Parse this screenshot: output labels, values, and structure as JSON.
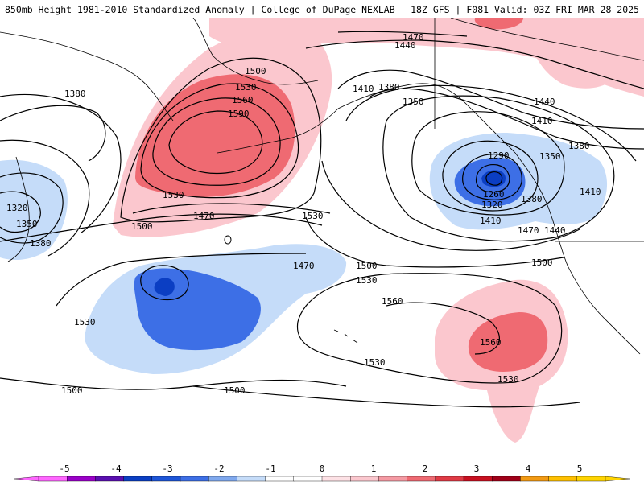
{
  "header": {
    "left_text": "850mb Height 1981-2010 Standardized Anomaly | College of DuPage NEXLAB",
    "right_text": "18Z GFS | F081 Valid: 03Z FRI MAR 28 2025"
  },
  "colors": {
    "anom_neg4": "#9a00c8",
    "anom_neg3": "#0b3ec3",
    "anom_neg2": "#3d6fe6",
    "anom_neg1": "#c5dcf9",
    "anom_pos1": "#fbc7ce",
    "anom_pos2": "#ef6a72",
    "anom_pos3": "#c81020",
    "anom_pos4": "#f29a13",
    "anom_pos5": "#ffd400",
    "contour": "#000000",
    "coast": "#000000"
  },
  "contour_labels": [
    {
      "text": "1470"
    },
    {
      "text": "1440"
    },
    {
      "text": "1380"
    },
    {
      "text": "1410"
    },
    {
      "text": "1350"
    },
    {
      "text": "1500"
    },
    {
      "text": "1530"
    },
    {
      "text": "1560"
    },
    {
      "text": "1590"
    },
    {
      "text": "1530"
    },
    {
      "text": "1500"
    },
    {
      "text": "1530"
    },
    {
      "text": "1470"
    },
    {
      "text": "1380"
    },
    {
      "text": "1320"
    },
    {
      "text": "1350"
    },
    {
      "text": "1380"
    },
    {
      "text": "1440"
    },
    {
      "text": "1410"
    },
    {
      "text": "1380"
    },
    {
      "text": "1290"
    },
    {
      "text": "1350"
    },
    {
      "text": "1260"
    },
    {
      "text": "1320"
    },
    {
      "text": "1380"
    },
    {
      "text": "1410"
    },
    {
      "text": "1410"
    },
    {
      "text": "1470"
    },
    {
      "text": "1440"
    },
    {
      "text": "1500"
    },
    {
      "text": "1470"
    },
    {
      "text": "1500"
    },
    {
      "text": "1530"
    },
    {
      "text": "1560"
    },
    {
      "text": "1530"
    },
    {
      "text": "1560"
    },
    {
      "text": "1530"
    },
    {
      "text": "1530"
    },
    {
      "text": "1500"
    },
    {
      "text": "1500"
    }
  ],
  "legend": {
    "ticks": [
      "-5",
      "-4",
      "-3",
      "-2",
      "-1",
      "0",
      "1",
      "2",
      "3",
      "4",
      "5"
    ],
    "bins": [
      "#ff66ff",
      "#9a00c8",
      "#5a0fb0",
      "#0b3ec3",
      "#1d55d8",
      "#3d6fe6",
      "#80a9ee",
      "#c5dcf9",
      "#ffffff",
      "#ffffff",
      "#fde1e5",
      "#fbc7ce",
      "#f59aa3",
      "#ef6a72",
      "#e03a45",
      "#c81020",
      "#a00018",
      "#f29a13",
      "#ffc000",
      "#ffd400"
    ]
  }
}
